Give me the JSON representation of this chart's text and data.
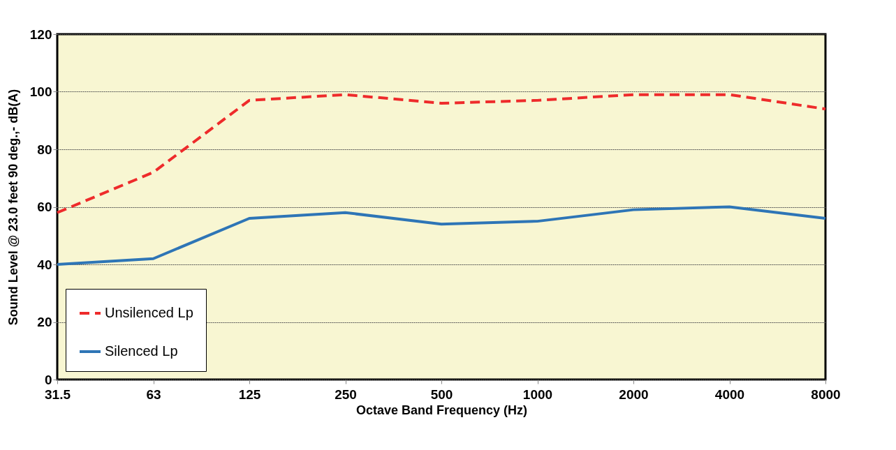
{
  "chart_data": {
    "type": "line",
    "xlabel": "Octave Band Frequency (Hz)",
    "ylabel": "Sound Level @ 23.0 feet 90 deg.,- dB(A)",
    "categories": [
      "31.5",
      "63",
      "125",
      "250",
      "500",
      "1000",
      "2000",
      "4000",
      "8000"
    ],
    "series": [
      {
        "name": "Unsilenced Lp",
        "color": "#ee2b2b",
        "line_style": "dashed",
        "values": [
          58,
          72,
          97,
          99,
          96,
          97,
          99,
          99,
          94
        ]
      },
      {
        "name": "Silenced Lp",
        "color": "#2e75b6",
        "line_style": "solid",
        "values": [
          40,
          42,
          56,
          58,
          54,
          55,
          59,
          60,
          56
        ]
      }
    ],
    "ylim": [
      0,
      120
    ],
    "yticks": [
      0,
      20,
      40,
      60,
      80,
      100,
      120
    ],
    "grid": "y",
    "legend": "bottom left",
    "marker": "none"
  }
}
